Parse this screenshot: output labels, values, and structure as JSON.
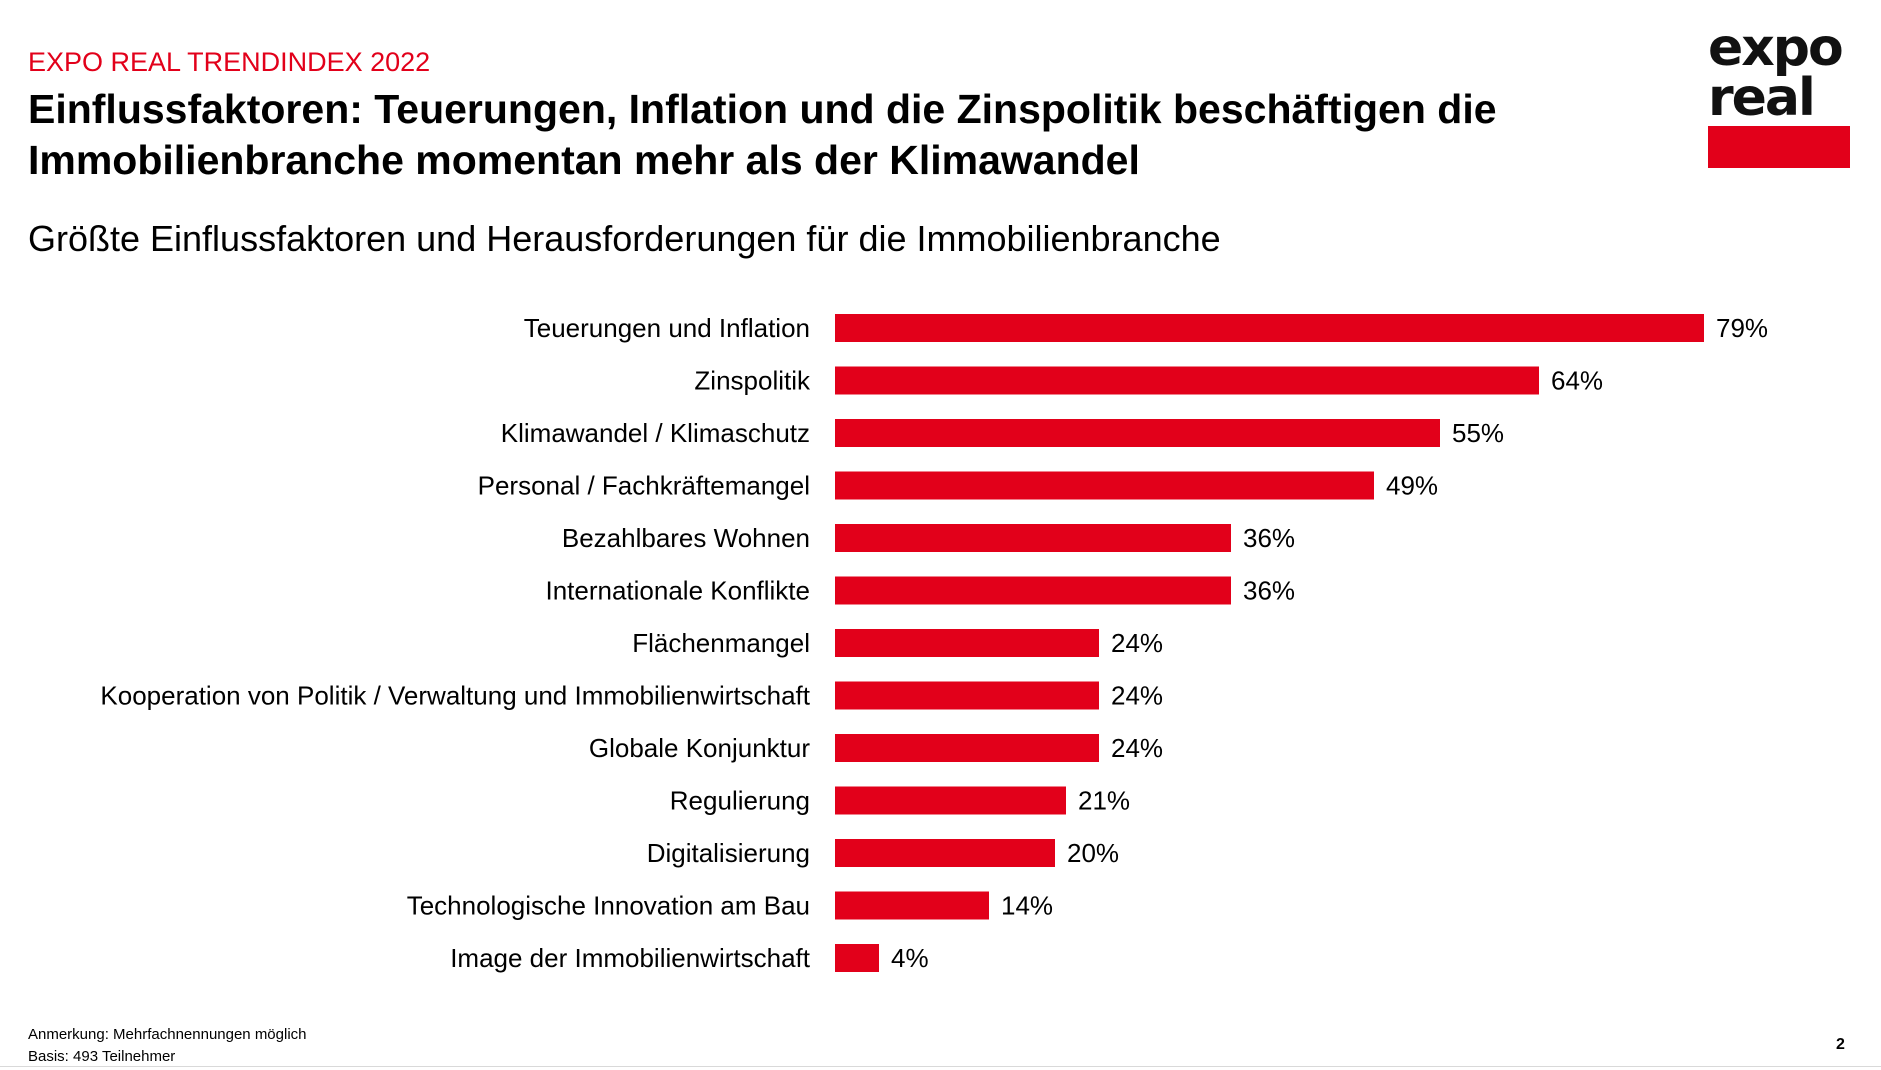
{
  "header": {
    "kicker": "EXPO REAL TRENDINDEX 2022",
    "headline": "Einflussfaktoren: Teuerungen, Inflation und die Zinspolitik beschäftigen die Immobilienbranche momentan mehr als der Klimawandel",
    "subtitle": "Größte Einflussfaktoren und Herausforderungen für die Immobilienbranche"
  },
  "logo": {
    "line1": "expo",
    "line2": "real",
    "bar_color": "#e2001a"
  },
  "colors": {
    "accent": "#e2001a",
    "text": "#000000"
  },
  "chart_data": {
    "type": "bar",
    "orientation": "horizontal",
    "title": "Größte Einflussfaktoren und Herausforderungen für die Immobilienbranche",
    "categories": [
      "Teuerungen und Inflation",
      "Zinspolitik",
      "Klimawandel / Klimaschutz",
      "Personal / Fachkräftemangel",
      "Bezahlbares Wohnen",
      "Internationale Konflikte",
      "Flächenmangel",
      "Kooperation von Politik / Verwaltung und Immobilienwirtschaft",
      "Globale Konjunktur",
      "Regulierung",
      "Digitalisierung",
      "Technologische Innovation am Bau",
      "Image der Immobilienwirtschaft"
    ],
    "values": [
      79,
      64,
      55,
      49,
      36,
      36,
      24,
      24,
      24,
      21,
      20,
      14,
      4
    ],
    "value_suffix": "%",
    "bar_color": "#e2001a",
    "axis_visible": false,
    "grid": false,
    "legend": "none"
  },
  "footer": {
    "note_line1": "Anmerkung: Mehrfachnennungen möglich",
    "note_line2": "Basis: 493 Teilnehmer",
    "page_number": "2"
  }
}
